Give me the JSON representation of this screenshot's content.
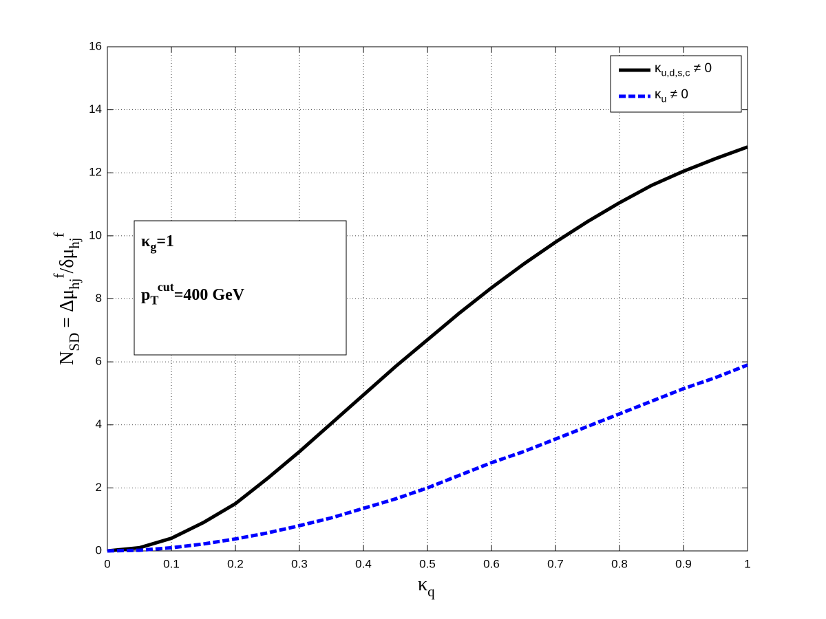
{
  "chart_data": {
    "type": "line",
    "x_label": [
      {
        "text": "κ"
      },
      {
        "text": "q",
        "script": "sub"
      }
    ],
    "y_label": [
      {
        "text": "N"
      },
      {
        "text": "SD",
        "script": "sub"
      },
      {
        "text": " = Δμ"
      },
      {
        "text": "hj",
        "script": "sub"
      },
      {
        "text": "f",
        "script": "sup"
      },
      {
        "text": "/δμ"
      },
      {
        "text": "hj",
        "script": "sub"
      },
      {
        "text": "f",
        "script": "sup"
      }
    ],
    "annotations": [
      [
        {
          "text": "κ"
        },
        {
          "text": "g",
          "script": "sub"
        },
        {
          "text": "=1"
        }
      ],
      [
        {
          "text": "p"
        },
        {
          "text": "T",
          "script": "sub"
        },
        {
          "text": "cut",
          "script": "sup"
        },
        {
          "text": "=400 GeV"
        }
      ]
    ],
    "x": [
      0,
      0.05,
      0.1,
      0.15,
      0.2,
      0.25,
      0.3,
      0.35,
      0.4,
      0.45,
      0.5,
      0.55,
      0.6,
      0.65,
      0.7,
      0.75,
      0.8,
      0.85,
      0.9,
      0.95,
      1.0
    ],
    "series": [
      {
        "name": [
          {
            "text": "κ"
          },
          {
            "text": "u,d,s,c",
            "script": "sub"
          },
          {
            "text": " ≠ 0"
          }
        ],
        "color": "#000000",
        "dash": "solid",
        "values": [
          0,
          0.1,
          0.4,
          0.9,
          1.5,
          2.3,
          3.15,
          4.05,
          4.95,
          5.85,
          6.7,
          7.55,
          8.35,
          9.1,
          9.8,
          10.45,
          11.05,
          11.6,
          12.05,
          12.45,
          12.82
        ]
      },
      {
        "name": [
          {
            "text": "κ"
          },
          {
            "text": "u",
            "script": "sub"
          },
          {
            "text": " ≠ 0"
          }
        ],
        "color": "#0000ff",
        "dash": "dashed",
        "values": [
          0,
          0.02,
          0.1,
          0.22,
          0.38,
          0.57,
          0.8,
          1.05,
          1.35,
          1.65,
          2.0,
          2.4,
          2.8,
          3.15,
          3.55,
          3.95,
          4.35,
          4.75,
          5.15,
          5.5,
          5.9
        ]
      }
    ],
    "xlim": [
      0,
      1
    ],
    "xticks": [
      0,
      0.1,
      0.2,
      0.3,
      0.4,
      0.5,
      0.6,
      0.7,
      0.8,
      0.9,
      1
    ],
    "ylim": [
      0,
      16
    ],
    "yticks": [
      0,
      2,
      4,
      6,
      8,
      10,
      12,
      14,
      16
    ],
    "grid": true,
    "legend": "upper right"
  }
}
